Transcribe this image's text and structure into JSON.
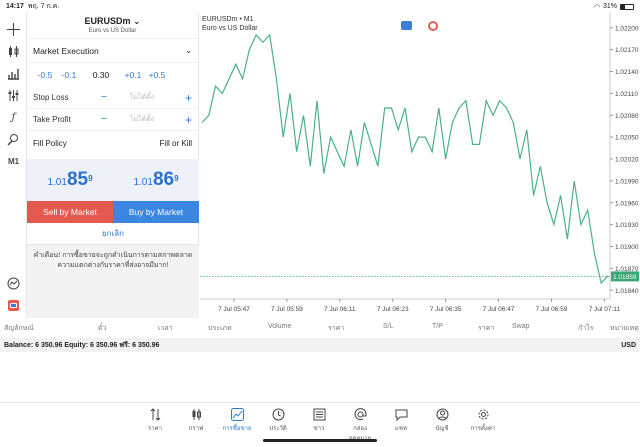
{
  "status": {
    "time": "14:17",
    "date": "พฤ. 7 ก.ค.",
    "battery": "31%"
  },
  "left_toolbar": {
    "timeframe": "M1"
  },
  "order": {
    "symbol": "EURUSDm",
    "description": "Euro vs US Dollar",
    "execution": "Market Execution",
    "volume_buttons": [
      "-0.5",
      "-0.1",
      "0.30",
      "+0.1",
      "+0.5"
    ],
    "stop_loss_label": "Stop Loss",
    "take_profit_label": "Take Profit",
    "unset_placeholder": "ไม่ได้ตั้ง",
    "fill_policy_label": "Fill Policy",
    "fill_policy_value": "Fill or Kill",
    "sell_price_main": "1.01",
    "sell_price_big": "85",
    "sell_price_sup": "9",
    "buy_price_main": "1.01",
    "buy_price_big": "86",
    "buy_price_sup": "9",
    "sell_label": "Sell by Market",
    "buy_label": "Buy by Market",
    "cancel_label": "ยกเลิก",
    "warning": "คำเตือน! การซื้อขายจะถูกดำเนินการตามสภาพตลาด ความแตกต่างกับราคาที่ส่งอาจมีมาก!"
  },
  "chart": {
    "title": "EURUSDm • M1",
    "subtitle": "Euro vs US Dollar",
    "current_price": "1.01859",
    "colors": {
      "line": "#4caf8a",
      "price_tag": "#3aa875",
      "grid": "#eeeeee"
    }
  },
  "chart_data": {
    "type": "line",
    "y_ticks": [
      "1.02200",
      "1.02170",
      "1.02140",
      "1.02110",
      "1.02080",
      "1.02050",
      "1.02020",
      "1.01990",
      "1.01960",
      "1.01930",
      "1.01900",
      "1.01870",
      "1.01840"
    ],
    "x_ticks": [
      "7 Jul 05:47",
      "7 Jul 05:59",
      "7 Jul 06:11",
      "7 Jul 06:23",
      "7 Jul 06:35",
      "7 Jul 06:47",
      "7 Jul 06:59",
      "7 Jul 07:11"
    ],
    "ylim": [
      1.01828,
      1.02212
    ],
    "y": [
      1.0207,
      1.0208,
      1.0212,
      1.0211,
      1.0213,
      1.0215,
      1.0213,
      1.0217,
      1.0219,
      1.0218,
      1.0219,
      1.0213,
      1.0205,
      1.0211,
      1.0203,
      1.0208,
      1.0201,
      1.021,
      1.02,
      1.0205,
      1.0203,
      1.0201,
      1.0206,
      1.0201,
      1.0207,
      1.0204,
      1.0201,
      1.0209,
      1.0209,
      1.0206,
      1.0209,
      1.0203,
      1.0205,
      1.0205,
      1.0203,
      1.0209,
      1.0202,
      1.0207,
      1.0209,
      1.021,
      1.0204,
      1.0204,
      1.021,
      1.0208,
      1.021,
      1.0209,
      1.0207,
      1.0202,
      1.0206,
      1.0197,
      1.0201,
      1.0196,
      1.0193,
      1.0197,
      1.0191,
      1.0199,
      1.0193,
      1.0195,
      1.0189,
      1.0185,
      1.0186
    ]
  },
  "columns": [
    "สัญลักษณ์",
    "ตั๋ว",
    "เวลา",
    "ประเภท",
    "Volume",
    "ราคา",
    "S/L",
    "T/P",
    "ราคา",
    "Swap",
    "กำไร",
    "หมายเหตุ"
  ],
  "balance": {
    "text": "Balance: 6 350.96 Equity: 6 350.96 ฟรี: 6 350.96",
    "currency": "USD"
  },
  "nav": [
    "ราคา",
    "กราฟ",
    "การซื้อขาย",
    "ประวัติ",
    "ข่าว",
    "กล่องจดหมาย",
    "แชท",
    "บัญชี",
    "การตั้งค่า"
  ]
}
